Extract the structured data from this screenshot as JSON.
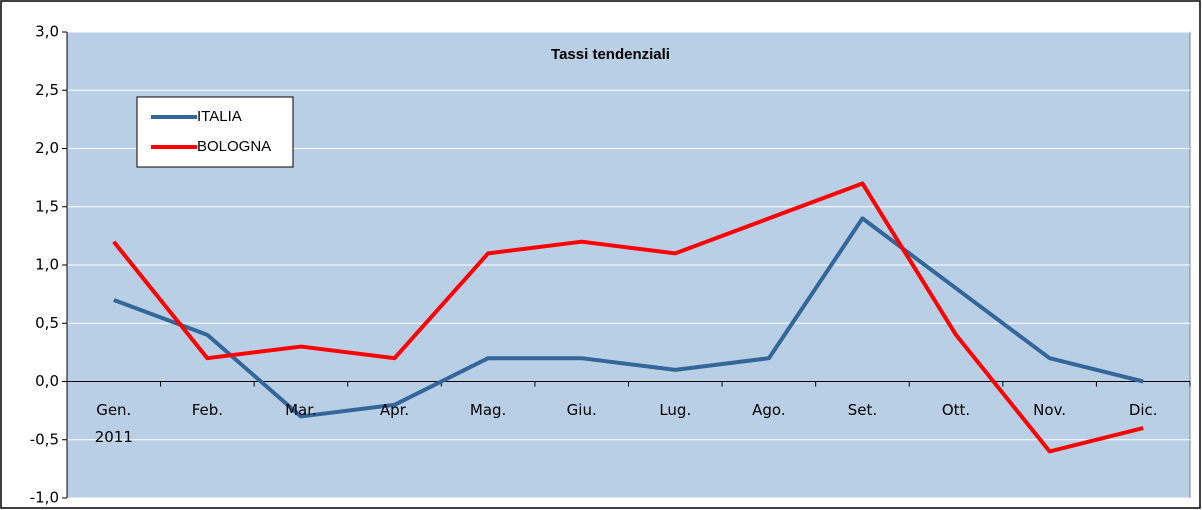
{
  "chart_data": {
    "type": "line",
    "title": "Tassi tendenziali",
    "categories": [
      "Gen.\n2011",
      "Feb.",
      "Mar.",
      "Apr.",
      "Mag.",
      "Giu.",
      "Lug.",
      "Ago.",
      "Set.",
      "Ott.",
      "Nov.",
      "Dic."
    ],
    "series": [
      {
        "name": "ITALIA",
        "color": "#336699",
        "values": [
          0.7,
          0.4,
          -0.3,
          -0.2,
          0.2,
          0.2,
          0.1,
          0.2,
          1.4,
          0.8,
          0.2,
          0.0
        ]
      },
      {
        "name": "BOLOGNA",
        "color": "#ff0000",
        "values": [
          1.2,
          0.2,
          0.3,
          0.2,
          1.1,
          1.2,
          1.1,
          1.4,
          1.7,
          0.4,
          -0.6,
          -0.4
        ]
      }
    ],
    "ylim": [
      -1,
      3
    ],
    "yticks": [
      {
        "value": -1,
        "label": "-1,0"
      },
      {
        "value": -0.5,
        "label": "-0,5"
      },
      {
        "value": 0,
        "label": "0,0"
      },
      {
        "value": 0.5,
        "label": "0,5"
      },
      {
        "value": 1,
        "label": "1,0"
      },
      {
        "value": 1.5,
        "label": "1,5"
      },
      {
        "value": 2,
        "label": "2,0"
      },
      {
        "value": 2.5,
        "label": "2,5"
      },
      {
        "value": 3,
        "label": "3,0"
      }
    ],
    "grid": true,
    "legend": "top-left"
  }
}
